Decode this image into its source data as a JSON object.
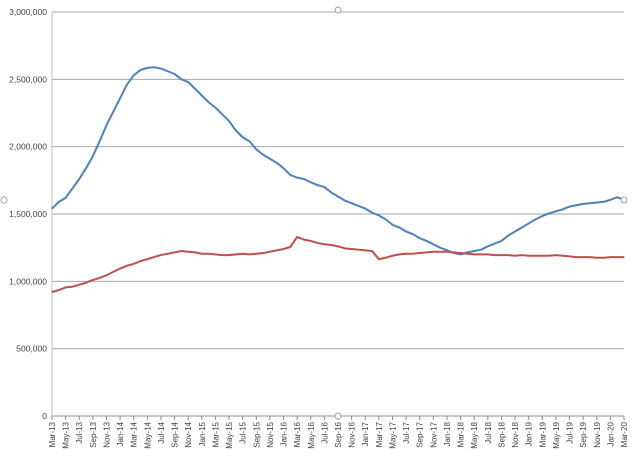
{
  "chart_data": {
    "type": "line",
    "title": "",
    "xlabel": "",
    "ylabel": "",
    "ylim": [
      0,
      3000000
    ],
    "yticks": [
      0,
      500000,
      1000000,
      1500000,
      2000000,
      2500000,
      3000000
    ],
    "ytick_labels": [
      "0",
      "500,000",
      "1,000,000",
      "1,500,000",
      "2,000,000",
      "2,500,000",
      "3,000,000"
    ],
    "grid": "horizontal",
    "legend": "none",
    "x": [
      "Mar-13",
      "Apr-13",
      "May-13",
      "Jun-13",
      "Jul-13",
      "Aug-13",
      "Sep-13",
      "Oct-13",
      "Nov-13",
      "Dec-13",
      "Jan-14",
      "Feb-14",
      "Mar-14",
      "Apr-14",
      "May-14",
      "Jun-14",
      "Jul-14",
      "Aug-14",
      "Sep-14",
      "Oct-14",
      "Nov-14",
      "Dec-14",
      "Jan-15",
      "Feb-15",
      "Mar-15",
      "Apr-15",
      "May-15",
      "Jun-15",
      "Jul-15",
      "Aug-15",
      "Sep-15",
      "Oct-15",
      "Nov-15",
      "Dec-15",
      "Jan-16",
      "Feb-16",
      "Mar-16",
      "Apr-16",
      "May-16",
      "Jun-16",
      "Jul-16",
      "Aug-16",
      "Sep-16",
      "Oct-16",
      "Nov-16",
      "Dec-16",
      "Jan-17",
      "Feb-17",
      "Mar-17",
      "Apr-17",
      "May-17",
      "Jun-17",
      "Jul-17",
      "Aug-17",
      "Sep-17",
      "Oct-17",
      "Nov-17",
      "Dec-17",
      "Jan-18",
      "Feb-18",
      "Mar-18",
      "Apr-18",
      "May-18",
      "Jun-18",
      "Jul-18",
      "Aug-18",
      "Sep-18",
      "Oct-18",
      "Nov-18",
      "Dec-18",
      "Jan-19",
      "Feb-19",
      "Mar-19",
      "Apr-19",
      "May-19",
      "Jun-19",
      "Jul-19",
      "Aug-19",
      "Sep-19",
      "Oct-19",
      "Nov-19",
      "Dec-19",
      "Jan-20",
      "Feb-20",
      "Mar-20"
    ],
    "xtick_labels": [
      "Mar-13",
      "May-13",
      "Jul-13",
      "Sep-13",
      "Nov-13",
      "Jan-14",
      "Mar-14",
      "May-14",
      "Jul-14",
      "Sep-14",
      "Nov-14",
      "Jan-15",
      "Mar-15",
      "May-15",
      "Jul-15",
      "Sep-15",
      "Nov-15",
      "Jan-16",
      "Mar-16",
      "May-16",
      "Jul-16",
      "Sep-16",
      "Nov-16",
      "Jan-17",
      "Mar-17",
      "May-17",
      "Jul-17",
      "Sep-17",
      "Nov-17",
      "Jan-18",
      "Mar-18",
      "May-18",
      "Jul-18",
      "Sep-18",
      "Nov-18",
      "Jan-19",
      "Mar-19",
      "May-19",
      "Jul-19",
      "Sep-19",
      "Nov-19",
      "Jan-20",
      "Mar-20"
    ],
    "series": [
      {
        "color": "#4f81bd",
        "values": [
          1540000,
          1590000,
          1620000,
          1690000,
          1760000,
          1840000,
          1930000,
          2040000,
          2160000,
          2260000,
          2360000,
          2460000,
          2530000,
          2570000,
          2585000,
          2590000,
          2580000,
          2560000,
          2540000,
          2500000,
          2480000,
          2430000,
          2380000,
          2330000,
          2290000,
          2240000,
          2190000,
          2120000,
          2070000,
          2040000,
          1980000,
          1940000,
          1910000,
          1880000,
          1840000,
          1790000,
          1770000,
          1760000,
          1735000,
          1715000,
          1700000,
          1660000,
          1630000,
          1600000,
          1580000,
          1560000,
          1540000,
          1510000,
          1490000,
          1460000,
          1420000,
          1400000,
          1370000,
          1350000,
          1320000,
          1300000,
          1275000,
          1250000,
          1230000,
          1210000,
          1200000,
          1215000,
          1225000,
          1235000,
          1260000,
          1280000,
          1300000,
          1340000,
          1370000,
          1400000,
          1430000,
          1460000,
          1485000,
          1505000,
          1520000,
          1535000,
          1555000,
          1565000,
          1575000,
          1580000,
          1585000,
          1590000,
          1605000,
          1625000,
          1605000
        ]
      },
      {
        "color": "#c0504d",
        "values": [
          920000,
          935000,
          955000,
          960000,
          975000,
          990000,
          1010000,
          1025000,
          1045000,
          1070000,
          1095000,
          1115000,
          1130000,
          1150000,
          1165000,
          1180000,
          1195000,
          1205000,
          1215000,
          1225000,
          1220000,
          1215000,
          1205000,
          1205000,
          1200000,
          1195000,
          1195000,
          1200000,
          1205000,
          1200000,
          1205000,
          1210000,
          1220000,
          1230000,
          1240000,
          1255000,
          1330000,
          1310000,
          1300000,
          1285000,
          1275000,
          1270000,
          1260000,
          1245000,
          1240000,
          1235000,
          1230000,
          1225000,
          1165000,
          1175000,
          1190000,
          1200000,
          1205000,
          1205000,
          1210000,
          1215000,
          1220000,
          1220000,
          1220000,
          1215000,
          1210000,
          1205000,
          1200000,
          1200000,
          1200000,
          1195000,
          1195000,
          1195000,
          1190000,
          1195000,
          1190000,
          1190000,
          1190000,
          1190000,
          1195000,
          1190000,
          1185000,
          1180000,
          1180000,
          1180000,
          1175000,
          1175000,
          1180000,
          1180000,
          1180000
        ]
      }
    ]
  }
}
